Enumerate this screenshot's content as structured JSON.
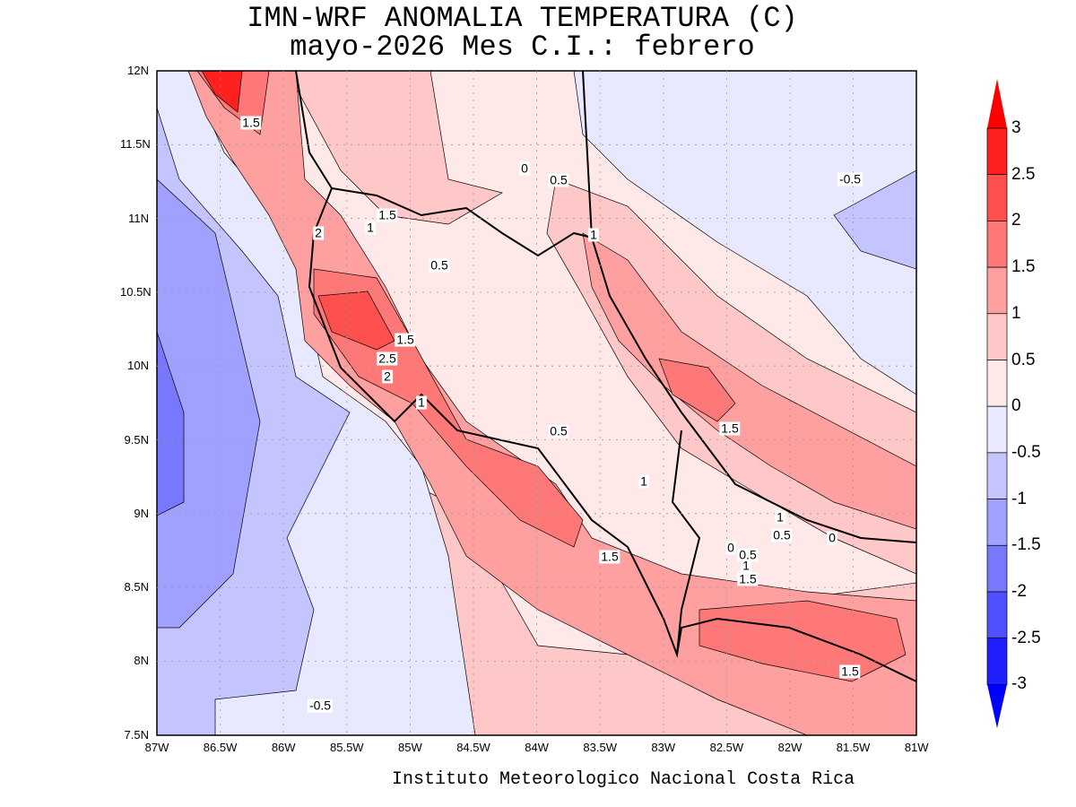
{
  "title": {
    "line1": "IMN-WRF  ANOMALIA TEMPERATURA (C)",
    "line2": "mayo-2026 Mes C.I.: febrero"
  },
  "credit": "Instituto Meteorologico Nacional Costa Rica",
  "lat_ticks": [
    "12N",
    "11.5N",
    "11N",
    "10.5N",
    "10N",
    "9.5N",
    "9N",
    "8.5N",
    "8N",
    "7.5N"
  ],
  "lon_ticks": [
    "87W",
    "86.5W",
    "86W",
    "85.5W",
    "85W",
    "84.5W",
    "84W",
    "83.5W",
    "83W",
    "82.5W",
    "82W",
    "81.5W",
    "81W"
  ],
  "colorbar": {
    "labels": [
      "3",
      "2.5",
      "2",
      "1.5",
      "1",
      "0.5",
      "0",
      "-0.5",
      "-1",
      "-1.5",
      "-2",
      "-2.5",
      "-3"
    ],
    "colors": [
      "#ff0000",
      "#ff2020",
      "#ff5050",
      "#ff7878",
      "#ffa0a0",
      "#ffc8c8",
      "#ffe8e8",
      "#e8e8ff",
      "#c4c4ff",
      "#a0a0ff",
      "#7878ff",
      "#5050ff",
      "#2020ff",
      "#0000ff"
    ]
  },
  "contour_labels": [
    "1.5",
    "2",
    "1.5",
    "1",
    "0",
    "0.5",
    "-0.5",
    "1",
    "0.5",
    "1.5",
    "2.5",
    "2",
    "1",
    "0.5",
    "1.5",
    "1",
    "1",
    "0.5",
    "0",
    "0",
    "0.5",
    "1",
    "1.5",
    "1.5",
    "1.5",
    "-0.5"
  ]
}
